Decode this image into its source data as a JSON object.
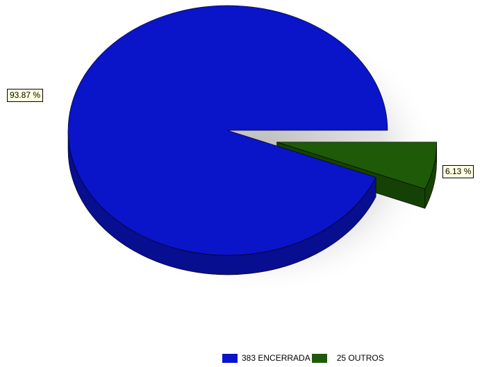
{
  "chart_data": {
    "type": "pie",
    "title": "",
    "categories": [
      "383 ENCERRADA",
      "25 OUTROS"
    ],
    "values": [
      383,
      25
    ],
    "percent_labels": [
      "93.87 %",
      "6.13 %"
    ],
    "colors": [
      "#0a14c8",
      "#1e5a08"
    ],
    "legend_position": "bottom"
  }
}
